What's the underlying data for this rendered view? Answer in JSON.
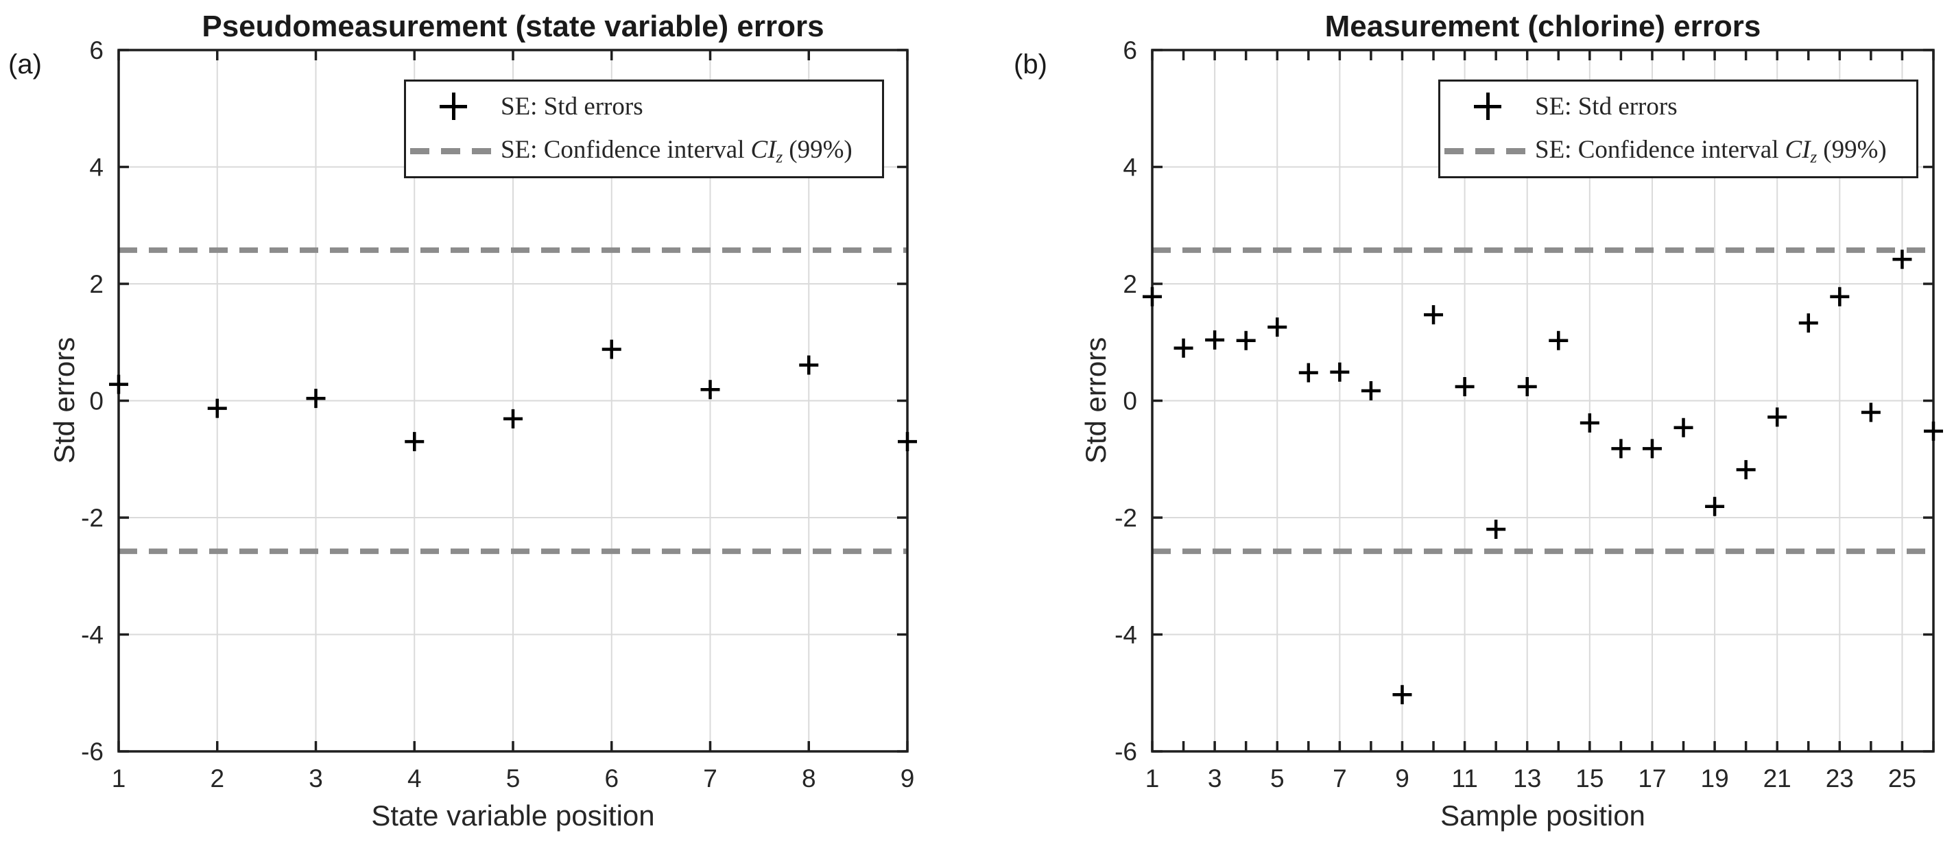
{
  "figure": {
    "corner_labels": {
      "a": "(a)",
      "b": "(b)"
    },
    "legend": {
      "series1_label": "SE: Std errors",
      "series2_prefix": "SE: Confidence interval",
      "series2_var": "CI",
      "series2_sub": "z",
      "series2_suffix": "(99%)"
    },
    "colors": {
      "marker": "#000000",
      "confidence_line": "#8c8c8c",
      "grid": "#dadada",
      "axis": "#1f1f1f",
      "text": "#262626"
    }
  },
  "chart_data": [
    {
      "type": "scatter",
      "panel": "a",
      "title": "Pseudomeasurement (state variable) errors",
      "xlabel": "State variable position",
      "ylabel": "Std errors",
      "xlim": [
        1,
        9
      ],
      "ylim": [
        -6,
        6
      ],
      "xticks": [
        1,
        2,
        3,
        4,
        5,
        6,
        7,
        8,
        9
      ],
      "xtick_labels": [
        "1",
        "2",
        "3",
        "4",
        "5",
        "6",
        "7",
        "8",
        "9"
      ],
      "yticks": [
        -6,
        -4,
        -2,
        0,
        2,
        4,
        6
      ],
      "ytick_labels": [
        "-6",
        "-4",
        "-2",
        "0",
        "2",
        "4",
        "6"
      ],
      "grid": true,
      "legend_position": "top-right-inside",
      "marker": "plus",
      "confidence_interval": 2.576,
      "confidence_level": "99%",
      "x": [
        1,
        2,
        3,
        4,
        5,
        6,
        7,
        8,
        9
      ],
      "y": [
        0.28,
        -0.13,
        0.04,
        -0.7,
        -0.31,
        0.88,
        0.19,
        0.61,
        -0.7
      ]
    },
    {
      "type": "scatter",
      "panel": "b",
      "title": "Measurement (chlorine) errors",
      "xlabel": "Sample position",
      "ylabel": "Std errors",
      "xlim": [
        1,
        26
      ],
      "ylim": [
        -6,
        6
      ],
      "xticks": [
        1,
        2,
        3,
        4,
        5,
        6,
        7,
        8,
        9,
        10,
        11,
        12,
        13,
        14,
        15,
        16,
        17,
        18,
        19,
        20,
        21,
        22,
        23,
        24,
        25,
        26
      ],
      "xtick_labels": [
        "1",
        "",
        "3",
        "",
        "5",
        "",
        "7",
        "",
        "9",
        "",
        "11",
        "",
        "13",
        "",
        "15",
        "",
        "17",
        "",
        "19",
        "",
        "21",
        "",
        "23",
        "",
        "25",
        ""
      ],
      "yticks": [
        -6,
        -4,
        -2,
        0,
        2,
        4,
        6
      ],
      "ytick_labels": [
        "-6",
        "-4",
        "-2",
        "0",
        "2",
        "4",
        "6"
      ],
      "grid": true,
      "legend_position": "top-right-inside",
      "marker": "plus",
      "confidence_interval": 2.576,
      "confidence_level": "99%",
      "x": [
        1,
        2,
        3,
        4,
        5,
        6,
        7,
        8,
        9,
        10,
        11,
        12,
        13,
        14,
        15,
        16,
        17,
        18,
        19,
        20,
        21,
        22,
        23,
        24,
        25,
        26
      ],
      "y": [
        1.78,
        0.9,
        1.04,
        1.03,
        1.26,
        0.48,
        0.49,
        0.17,
        -5.03,
        1.47,
        0.24,
        -2.2,
        0.24,
        1.03,
        -0.38,
        -0.82,
        -0.82,
        -0.46,
        -1.81,
        -1.18,
        -0.28,
        1.33,
        1.78,
        -0.2,
        2.42,
        -0.52
      ]
    }
  ]
}
